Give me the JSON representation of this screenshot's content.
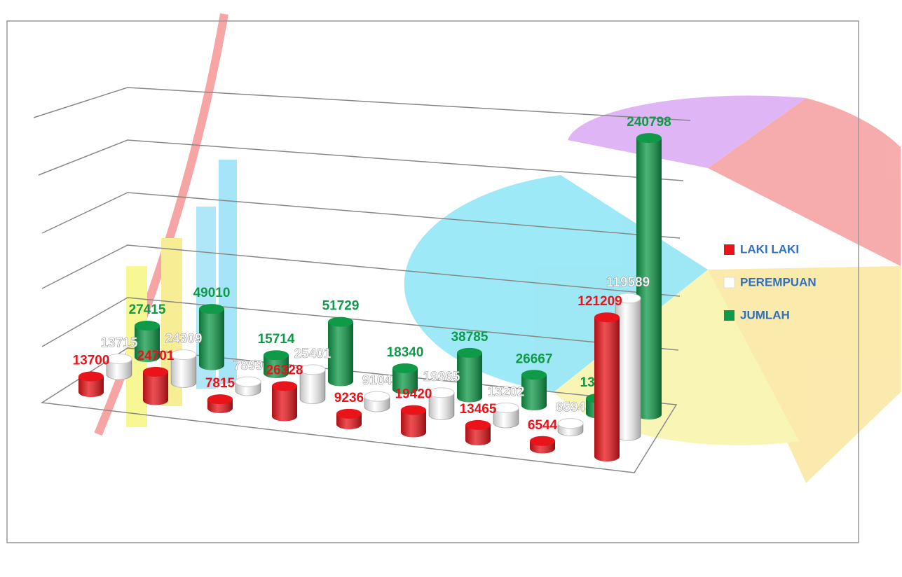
{
  "chart_data": {
    "type": "bar",
    "categories": [
      null,
      null,
      null,
      null,
      null,
      null,
      null,
      null,
      null
    ],
    "series": [
      {
        "name": "LAKI LAKI",
        "color": "#e8141a",
        "values": [
          13700,
          24701,
          7815,
          26328,
          9236,
          19420,
          13465,
          6544,
          121209
        ]
      },
      {
        "name": "PEREMPUAN",
        "color": "#ffffff",
        "values": [
          13715,
          24309,
          7899,
          25401,
          9104,
          19365,
          13202,
          6594,
          119589
        ]
      },
      {
        "name": "JUMLAH",
        "color": "#0f9a48",
        "values": [
          27415,
          49010,
          15714,
          51729,
          18340,
          38785,
          26667,
          13138,
          240798
        ]
      }
    ],
    "ylim": [
      0,
      250000
    ]
  }
}
